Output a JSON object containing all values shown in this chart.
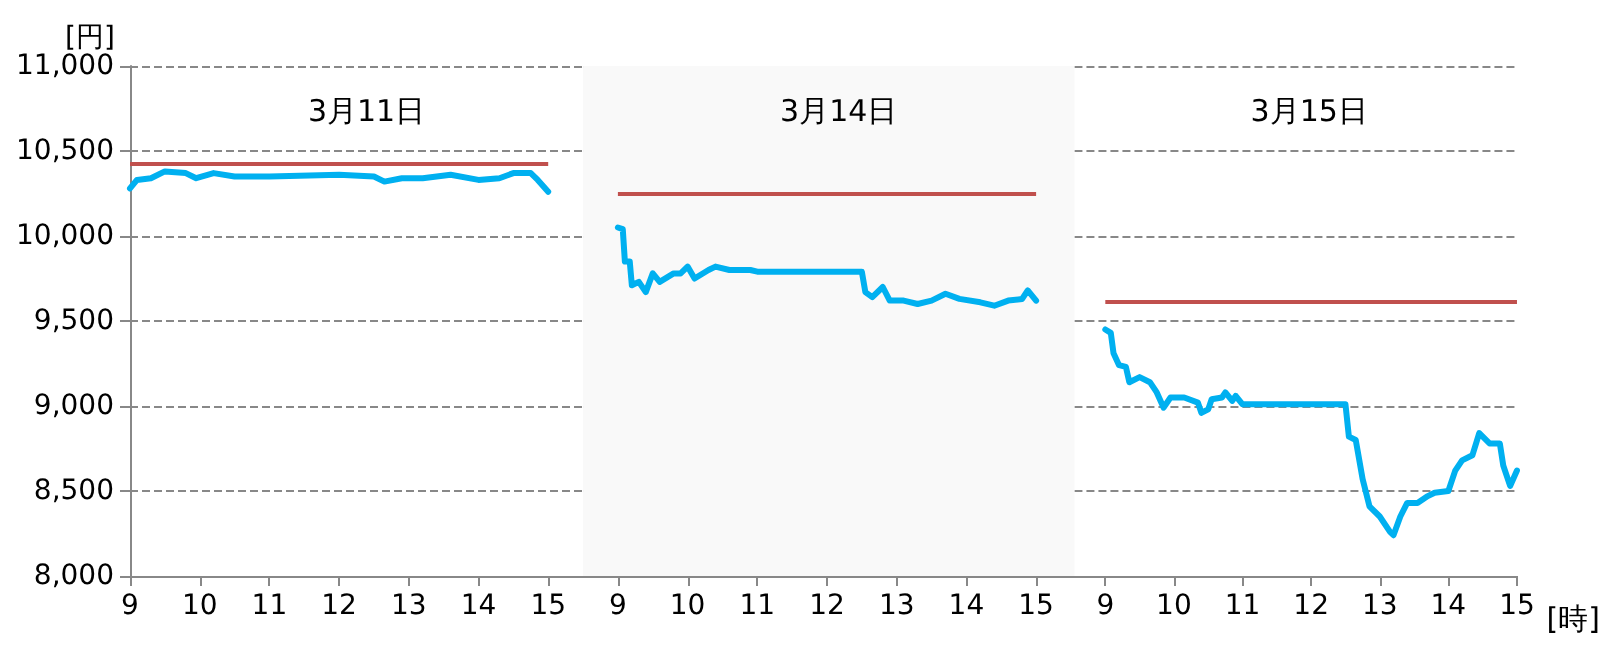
{
  "chart_data": [
    {
      "type": "line",
      "title": "3月11日",
      "ylabel": "[円]",
      "grid": "y",
      "xlim": [
        9,
        15.5
      ],
      "xticks": [
        9,
        10,
        11,
        12,
        13,
        14,
        15
      ],
      "ylim": [
        8000,
        11000
      ],
      "yticks": [
        {
          "value": 8000,
          "label": "8,000"
        },
        {
          "value": 8500,
          "label": "8,500"
        },
        {
          "value": 9000,
          "label": "9,000"
        },
        {
          "value": 9500,
          "label": "9,500"
        },
        {
          "value": 10000,
          "label": "10,000"
        },
        {
          "value": 10500,
          "label": "10,500"
        },
        {
          "value": 11000,
          "label": "11,000"
        }
      ],
      "ref_lines": [
        {
          "axis": "y",
          "value": 10430,
          "color": "#c0504d"
        }
      ],
      "series": [
        {
          "color": "#00b0f0",
          "x": [
            9.0,
            9.1,
            9.3,
            9.5,
            9.8,
            9.95,
            10.2,
            10.5,
            11.0,
            12.0,
            12.5,
            12.65,
            12.9,
            13.2,
            13.6,
            14.0,
            14.3,
            14.5,
            14.75,
            14.85,
            15.0
          ],
          "values": [
            10280,
            10330,
            10340,
            10380,
            10370,
            10340,
            10370,
            10350,
            10350,
            10360,
            10350,
            10320,
            10340,
            10340,
            10360,
            10330,
            10340,
            10370,
            10370,
            10330,
            10260
          ]
        }
      ]
    },
    {
      "type": "line",
      "title": "3月14日",
      "grid": "y",
      "tick_labels": "x",
      "xlim": [
        8.5,
        15.55
      ],
      "xticks": [
        9,
        10,
        11,
        12,
        13,
        14,
        15
      ],
      "ylim": [
        8000,
        11000
      ],
      "yticks": [
        8000,
        8500,
        9000,
        9500,
        10000,
        10500,
        11000
      ],
      "ref_lines": [
        {
          "axis": "y",
          "value": 10250,
          "color": "#c0504d"
        }
      ],
      "bands": [
        {
          "axis": "x",
          "from": 8.5,
          "to": 15.55,
          "color": "#f9f9f9"
        }
      ],
      "series": [
        {
          "color": "#00b0f0",
          "x": [
            9.0,
            9.07,
            9.1,
            9.17,
            9.2,
            9.3,
            9.4,
            9.5,
            9.6,
            9.8,
            9.9,
            10.0,
            10.1,
            10.3,
            10.4,
            10.6,
            10.9,
            11.0,
            12.5,
            12.55,
            12.65,
            12.8,
            12.9,
            13.1,
            13.3,
            13.5,
            13.7,
            13.9,
            14.2,
            14.4,
            14.6,
            14.8,
            14.88,
            15.0
          ],
          "values": [
            10050,
            10040,
            9850,
            9850,
            9710,
            9730,
            9670,
            9780,
            9730,
            9780,
            9780,
            9820,
            9750,
            9800,
            9820,
            9800,
            9800,
            9790,
            9790,
            9670,
            9640,
            9700,
            9620,
            9620,
            9600,
            9620,
            9660,
            9630,
            9610,
            9590,
            9620,
            9630,
            9680,
            9620
          ]
        }
      ]
    },
    {
      "type": "line",
      "title": "3月15日",
      "xlabel": "[時]",
      "grid": "y",
      "tick_labels": "x",
      "xlim": [
        8.55,
        15
      ],
      "xticks": [
        9,
        10,
        11,
        12,
        13,
        14,
        15
      ],
      "ylim": [
        8000,
        11000
      ],
      "yticks": [
        8000,
        8500,
        9000,
        9500,
        10000,
        10500,
        11000
      ],
      "ref_lines": [
        {
          "axis": "y",
          "value": 9620,
          "color": "#c0504d"
        }
      ],
      "series": [
        {
          "color": "#00b0f0",
          "x": [
            9.0,
            9.08,
            9.12,
            9.2,
            9.3,
            9.35,
            9.5,
            9.65,
            9.75,
            9.85,
            9.95,
            10.15,
            10.35,
            10.4,
            10.5,
            10.55,
            10.7,
            10.75,
            10.85,
            10.9,
            11.0,
            12.5,
            12.55,
            12.65,
            12.75,
            12.85,
            13.0,
            13.15,
            13.2,
            13.3,
            13.4,
            13.55,
            13.7,
            13.8,
            14.0,
            14.1,
            14.2,
            14.35,
            14.45,
            14.6,
            14.75,
            14.8,
            14.9,
            15.0
          ],
          "values": [
            9450,
            9430,
            9310,
            9240,
            9230,
            9140,
            9170,
            9140,
            9080,
            8990,
            9050,
            9050,
            9020,
            8960,
            8980,
            9040,
            9050,
            9080,
            9030,
            9060,
            9010,
            9010,
            8820,
            8800,
            8570,
            8410,
            8350,
            8260,
            8240,
            8350,
            8430,
            8430,
            8470,
            8490,
            8500,
            8620,
            8680,
            8710,
            8840,
            8780,
            8780,
            8650,
            8530,
            8620
          ]
        }
      ]
    }
  ]
}
